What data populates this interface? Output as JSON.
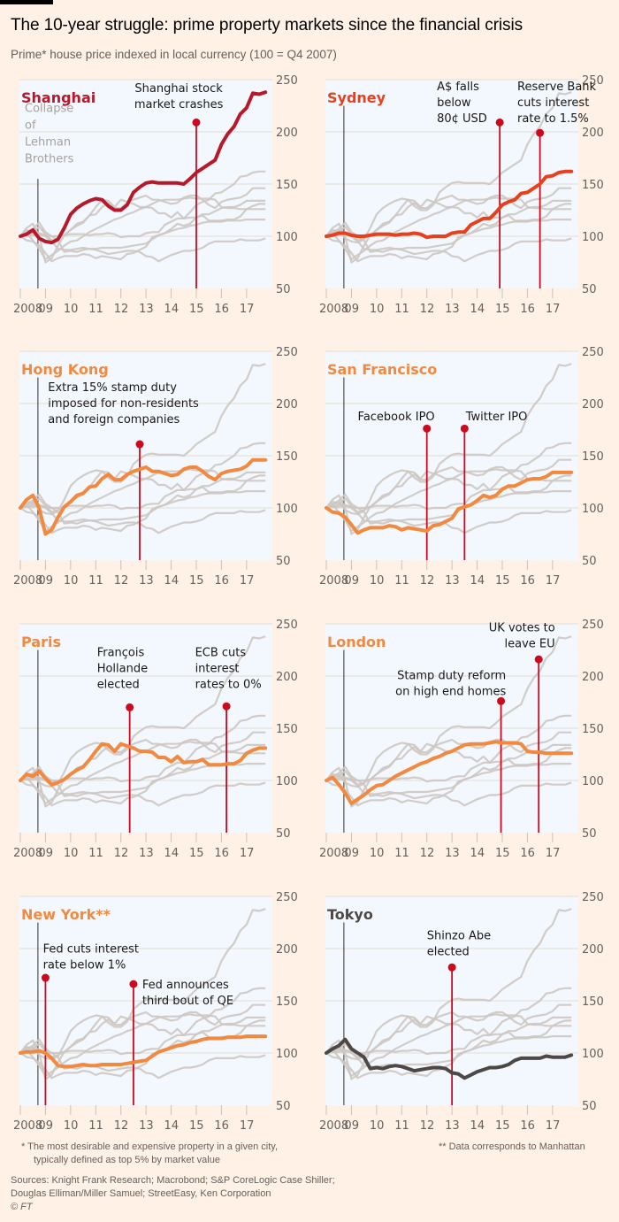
{
  "header": {
    "title": "The 10-year struggle: prime property markets since the financial crisis",
    "subtitle": "Prime* house price indexed in local currency (100 = Q4 2007)"
  },
  "footer": {
    "note1_line1": "* The most desirable and expensive property in a given city,",
    "note1_line2": "typically defined as top 5% by market value",
    "note2": "** Data corresponds to Manhattan",
    "sources_line1": "Sources: Knight Frank Research; Macrobond; S&P CoreLogic Case Shiller;",
    "sources_line2": "Douglas Elliman/Miller Samuel; StreetEasy, Ken Corporation",
    "copyright": "© FT"
  },
  "colors": {
    "background": "#fff1e5",
    "plot_background": "#f2f8fd",
    "grid": "#e6e1dc",
    "context_lines": "#cdc7c2",
    "event_marker": "#cc0a1e",
    "lehman_line": "#33302e",
    "axis_text": "#66605c"
  },
  "chart_data": {
    "type": "line",
    "title": "The 10-year struggle: prime property markets since the financial crisis",
    "subtitle": "Prime* house price indexed in local currency (100 = Q4 2007)",
    "ylim": [
      50,
      250
    ],
    "yticks": [
      50,
      100,
      150,
      200,
      250
    ],
    "xlim": [
      2007.95,
      2017.85
    ],
    "xticks": [
      2008,
      2009,
      2010,
      2011,
      2012,
      2013,
      2014,
      2015,
      2016,
      2017
    ],
    "xtick_labels": [
      "2008",
      "09",
      "10",
      "11",
      "12",
      "13",
      "14",
      "15",
      "16",
      "17"
    ],
    "grid": true,
    "lehman": {
      "x": 2008.7,
      "label": [
        "Collapse",
        "of",
        "Lehman",
        "Brothers"
      ]
    },
    "x": [
      2008.0,
      2008.25,
      2008.5,
      2008.75,
      2009.0,
      2009.25,
      2009.5,
      2009.75,
      2010.0,
      2010.25,
      2010.5,
      2010.75,
      2011.0,
      2011.25,
      2011.5,
      2011.75,
      2012.0,
      2012.25,
      2012.5,
      2012.75,
      2013.0,
      2013.25,
      2013.5,
      2013.75,
      2014.0,
      2014.25,
      2014.5,
      2014.75,
      2015.0,
      2015.25,
      2015.5,
      2015.75,
      2016.0,
      2016.25,
      2016.5,
      2016.75,
      2017.0,
      2017.25,
      2017.5,
      2017.75
    ],
    "series": [
      {
        "name": "Shanghai",
        "color": "#b7192b",
        "values": [
          100,
          102,
          106,
          98,
          95,
          94,
          97,
          108,
          121,
          127,
          131,
          134,
          136,
          135,
          129,
          125,
          125,
          130,
          142,
          147,
          151,
          152,
          151,
          151,
          151,
          151,
          150,
          155,
          161,
          165,
          169,
          173,
          188,
          198,
          205,
          217,
          223,
          237,
          236,
          238
        ]
      },
      {
        "name": "Sydney",
        "color": "#e8401c",
        "values": [
          100,
          101,
          103,
          103,
          101,
          100,
          100,
          101,
          102,
          102,
          102,
          101,
          102,
          102,
          103,
          102,
          99,
          100,
          100,
          100,
          103,
          104,
          104,
          111,
          114,
          117,
          117,
          123,
          130,
          133,
          135,
          141,
          142,
          146,
          150,
          157,
          158,
          161,
          162,
          162
        ]
      },
      {
        "name": "Hong Kong",
        "color": "#f2893e",
        "values": [
          100,
          108,
          112,
          100,
          75,
          79,
          91,
          101,
          106,
          112,
          114,
          120,
          121,
          128,
          132,
          127,
          127,
          132,
          135,
          137,
          139,
          135,
          135,
          133,
          131,
          132,
          137,
          139,
          139,
          135,
          130,
          127,
          133,
          135,
          136,
          137,
          140,
          146,
          146,
          146
        ]
      },
      {
        "name": "San Francisco",
        "color": "#f2893e",
        "values": [
          100,
          96,
          95,
          91,
          84,
          76,
          79,
          81,
          81,
          81,
          83,
          82,
          79,
          81,
          80,
          79,
          78,
          83,
          84,
          87,
          90,
          99,
          101,
          103,
          107,
          112,
          110,
          112,
          118,
          121,
          121,
          124,
          127,
          128,
          128,
          130,
          134,
          134,
          134,
          134
        ]
      },
      {
        "name": "Paris",
        "color": "#f2893e",
        "values": [
          100,
          106,
          104,
          109,
          102,
          96,
          98,
          101,
          106,
          110,
          113,
          120,
          128,
          135,
          134,
          128,
          135,
          133,
          131,
          128,
          128,
          127,
          122,
          122,
          118,
          123,
          117,
          118,
          118,
          120,
          115,
          115,
          115,
          116,
          116,
          119,
          126,
          129,
          131,
          131
        ]
      },
      {
        "name": "London",
        "color": "#f2893e",
        "values": [
          100,
          103,
          96,
          88,
          78,
          82,
          86,
          91,
          95,
          96,
          100,
          104,
          107,
          110,
          113,
          116,
          118,
          121,
          123,
          126,
          128,
          131,
          134,
          135,
          135,
          135,
          136,
          137,
          136,
          136,
          136,
          135,
          128,
          127,
          127,
          126,
          126,
          126,
          126,
          126
        ]
      },
      {
        "name": "New York**",
        "color": "#f2893e",
        "values": [
          100,
          101,
          101,
          102,
          100,
          95,
          88,
          87,
          87,
          88,
          89,
          88,
          88,
          89,
          89,
          89,
          89,
          90,
          91,
          92,
          93,
          97,
          101,
          103,
          105,
          107,
          108,
          110,
          111,
          113,
          114,
          114,
          114,
          115,
          115,
          115,
          116,
          116,
          116,
          116
        ]
      },
      {
        "name": "Tokyo",
        "color": "#4d4845",
        "values": [
          100,
          104,
          107,
          113,
          104,
          100,
          96,
          85,
          86,
          85,
          87,
          88,
          87,
          85,
          83,
          84,
          85,
          86,
          86,
          85,
          81,
          80,
          76,
          79,
          82,
          84,
          86,
          86,
          87,
          89,
          93,
          95,
          95,
          95,
          95,
          97,
          96,
          96,
          96,
          98
        ]
      }
    ],
    "panels": [
      {
        "city": "Shanghai",
        "highlight": 0,
        "show_lehman_label": true,
        "events": [
          {
            "x": 2015.0,
            "y": 209,
            "label": [
              "Shanghai stock",
              "market crashes"
            ],
            "label_anchor": "middle",
            "label_x": 2014.3,
            "label_y": 238
          }
        ]
      },
      {
        "city": "Sydney",
        "highlight": 1,
        "show_lehman_label": false,
        "events": [
          {
            "x": 2014.9,
            "y": 209,
            "label": [
              "A$ falls",
              "below",
              "80¢ USD"
            ],
            "label_anchor": "start",
            "label_x": 2012.4,
            "label_y": 240
          },
          {
            "x": 2016.5,
            "y": 199,
            "label": [
              "Reserve Bank",
              "cuts interest",
              "rate to 1.5%"
            ],
            "label_anchor": "start",
            "label_x": 2015.6,
            "label_y": 240
          }
        ]
      },
      {
        "city": "Hong Kong",
        "highlight": 2,
        "show_lehman_label": false,
        "events": [
          {
            "x": 2012.75,
            "y": 161,
            "label": [
              "Extra 15% stamp duty",
              "imposed for non-residents",
              "and foreign companies"
            ],
            "label_anchor": "start",
            "label_x": 2009.1,
            "label_y": 212
          }
        ]
      },
      {
        "city": "San Francisco",
        "highlight": 3,
        "show_lehman_label": false,
        "events": [
          {
            "x": 2012.0,
            "y": 176,
            "label": [
              "Facebook IPO"
            ],
            "label_anchor": "start",
            "label_x": 2009.25,
            "label_y": 184
          },
          {
            "x": 2013.5,
            "y": 176,
            "label": [
              "Twitter IPO"
            ],
            "label_anchor": "start",
            "label_x": 2013.55,
            "label_y": 184
          }
        ]
      },
      {
        "city": "Paris",
        "highlight": 4,
        "show_lehman_label": false,
        "events": [
          {
            "x": 2012.35,
            "y": 170,
            "label": [
              "François",
              "Hollande",
              "elected"
            ],
            "label_anchor": "start",
            "label_x": 2011.05,
            "label_y": 219
          },
          {
            "x": 2016.2,
            "y": 171,
            "label": [
              "ECB cuts",
              "interest",
              "rates to 0%"
            ],
            "label_anchor": "start",
            "label_x": 2014.95,
            "label_y": 219
          }
        ]
      },
      {
        "city": "London",
        "highlight": 5,
        "show_lehman_label": false,
        "events": [
          {
            "x": 2014.95,
            "y": 176,
            "label": [
              "Stamp duty reform",
              "on high end homes"
            ],
            "label_anchor": "end",
            "label_x": 2015.15,
            "label_y": 197
          },
          {
            "x": 2016.45,
            "y": 216,
            "label": [
              "UK votes to",
              "leave EU"
            ],
            "label_anchor": "end",
            "label_x": 2017.1,
            "label_y": 243
          }
        ]
      },
      {
        "city": "New York**",
        "highlight": 6,
        "show_lehman_label": false,
        "events": [
          {
            "x": 2009.0,
            "y": 172,
            "label": [
              "Fed cuts interest",
              "rate below 1%"
            ],
            "label_anchor": "start",
            "label_x": 2008.9,
            "label_y": 196
          },
          {
            "x": 2012.5,
            "y": 166,
            "label": [
              "Fed announces",
              "third bout of QE"
            ],
            "label_anchor": "start",
            "label_x": 2012.85,
            "label_y": 162
          }
        ]
      },
      {
        "city": "Tokyo",
        "highlight": 7,
        "show_lehman_label": false,
        "events": [
          {
            "x": 2013.0,
            "y": 182,
            "label": [
              "Shinzo Abe",
              "elected"
            ],
            "label_anchor": "start",
            "label_x": 2012.0,
            "label_y": 209
          }
        ]
      }
    ]
  }
}
